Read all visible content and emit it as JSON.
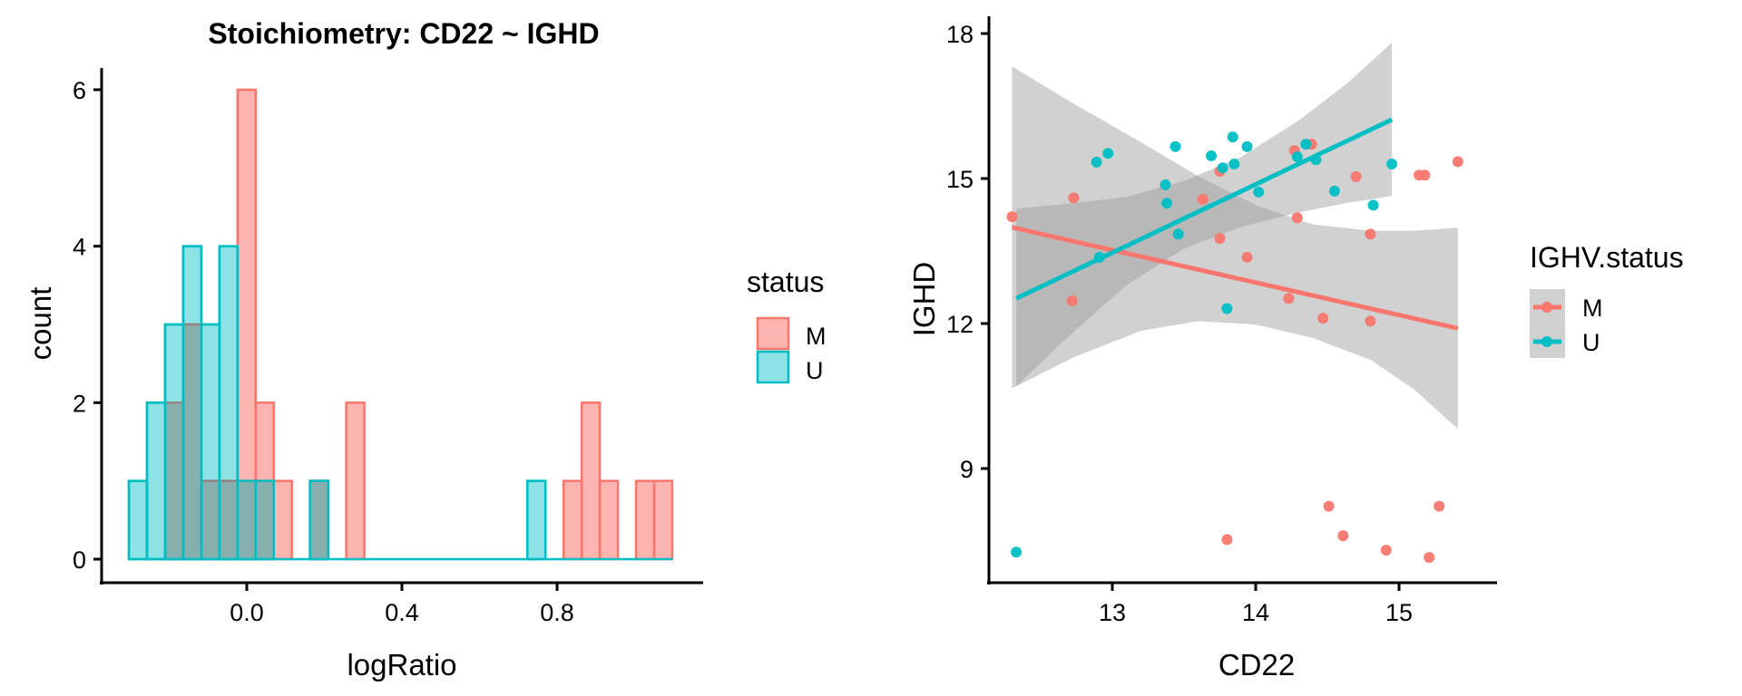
{
  "chart_data": [
    {
      "type": "bar",
      "subtype": "histogram",
      "title": "Stoichiometry: CD22 ~ IGHD",
      "xlabel": "logRatio",
      "ylabel": "count",
      "xlim": [
        -0.38,
        1.17
      ],
      "ylim": [
        0,
        6.25
      ],
      "xticks": [
        0.0,
        0.4,
        0.8
      ],
      "xtick_labels": [
        "0.0",
        "0.4",
        "0.8"
      ],
      "yticks": [
        0,
        2,
        4,
        6
      ],
      "ytick_labels": [
        "0",
        "2",
        "4",
        "6"
      ],
      "grid": false,
      "bins": {
        "start": -0.304,
        "width": 0.0467,
        "count": 30
      },
      "series": [
        {
          "name": "M",
          "color": "#F8766D",
          "fill_opacity": 0.55,
          "values": [
            0,
            0,
            2,
            3,
            1,
            1,
            6,
            2,
            1,
            0,
            1,
            0,
            2,
            0,
            0,
            0,
            0,
            0,
            0,
            0,
            0,
            0,
            0,
            0,
            1,
            2,
            1,
            0,
            1,
            1
          ]
        },
        {
          "name": "U",
          "color": "#00BFC4",
          "fill_opacity": 0.45,
          "values": [
            1,
            2,
            3,
            4,
            3,
            4,
            1,
            1,
            0,
            0,
            1,
            0,
            0,
            0,
            0,
            0,
            0,
            0,
            0,
            0,
            0,
            0,
            1,
            0,
            0,
            0,
            0,
            0,
            0,
            0
          ]
        }
      ],
      "legend": {
        "title": "status",
        "position": "right",
        "entries": [
          "M",
          "U"
        ]
      }
    },
    {
      "type": "scatter",
      "title": "",
      "xlabel": "CD22",
      "ylabel": "IGHD",
      "xlim": [
        12.15,
        15.55
      ],
      "ylim": [
        6.6,
        18.4
      ],
      "xticks": [
        13,
        14,
        15
      ],
      "xtick_labels": [
        "13",
        "14",
        "15"
      ],
      "yticks": [
        9,
        12,
        15,
        18
      ],
      "ytick_labels": [
        "9",
        "12",
        "15",
        "18"
      ],
      "grid": false,
      "series": [
        {
          "name": "M",
          "color": "#F8766D",
          "points": [
            [
              12.3,
              14.21
            ],
            [
              12.73,
              14.6
            ],
            [
              12.72,
              12.47
            ],
            [
              13.63,
              14.57
            ],
            [
              13.75,
              15.15
            ],
            [
              13.75,
              13.76
            ],
            [
              13.94,
              13.37
            ],
            [
              14.27,
              15.58
            ],
            [
              14.39,
              15.71
            ],
            [
              14.7,
              15.04
            ],
            [
              15.14,
              15.07
            ],
            [
              15.18,
              15.07
            ],
            [
              15.41,
              15.35
            ],
            [
              14.29,
              14.19
            ],
            [
              14.8,
              13.85
            ],
            [
              14.23,
              12.52
            ],
            [
              14.47,
              12.11
            ],
            [
              14.8,
              12.05
            ],
            [
              13.8,
              7.53
            ],
            [
              14.51,
              8.22
            ],
            [
              14.61,
              7.61
            ],
            [
              14.91,
              7.31
            ],
            [
              15.21,
              7.16
            ],
            [
              15.28,
              8.22
            ]
          ],
          "fit": {
            "x": [
              12.3,
              15.41
            ],
            "y": [
              13.99,
              11.9
            ]
          },
          "ribbon": {
            "x": [
              12.3,
              12.73,
              13.2,
              13.6,
              14.0,
              14.4,
              14.8,
              15.1,
              15.41
            ],
            "upper": [
              17.32,
              16.55,
              15.75,
              15.05,
              14.45,
              14.05,
              13.92,
              13.92,
              13.98
            ],
            "lower": [
              10.66,
              11.3,
              11.85,
              12.05,
              11.98,
              11.7,
              11.25,
              10.65,
              9.82
            ]
          }
        },
        {
          "name": "U",
          "color": "#00BFC4",
          "points": [
            [
              12.33,
              7.27
            ],
            [
              12.89,
              15.34
            ],
            [
              12.97,
              15.52
            ],
            [
              12.91,
              13.37
            ],
            [
              13.44,
              15.66
            ],
            [
              13.37,
              14.87
            ],
            [
              13.38,
              14.49
            ],
            [
              13.46,
              13.85
            ],
            [
              13.69,
              15.47
            ],
            [
              13.77,
              15.22
            ],
            [
              13.84,
              15.86
            ],
            [
              13.85,
              15.3
            ],
            [
              13.94,
              15.66
            ],
            [
              13.8,
              12.31
            ],
            [
              14.02,
              14.72
            ],
            [
              14.29,
              15.45
            ],
            [
              14.35,
              15.71
            ],
            [
              14.42,
              15.39
            ],
            [
              14.55,
              14.74
            ],
            [
              14.95,
              15.3
            ],
            [
              14.82,
              14.45
            ]
          ],
          "fit": {
            "x": [
              12.33,
              14.95
            ],
            "y": [
              12.52,
              16.22
            ]
          },
          "ribbon": {
            "x": [
              12.33,
              12.7,
              13.1,
              13.5,
              13.9,
              14.3,
              14.65,
              14.95
            ],
            "upper": [
              14.38,
              14.48,
              14.62,
              14.95,
              15.45,
              16.2,
              17.0,
              17.81
            ],
            "lower": [
              10.7,
              11.75,
              12.8,
              13.55,
              14.0,
              14.3,
              14.5,
              14.64
            ]
          }
        }
      ],
      "legend": {
        "title": "IGHV.status",
        "position": "right",
        "entries": [
          "M",
          "U"
        ]
      }
    }
  ]
}
